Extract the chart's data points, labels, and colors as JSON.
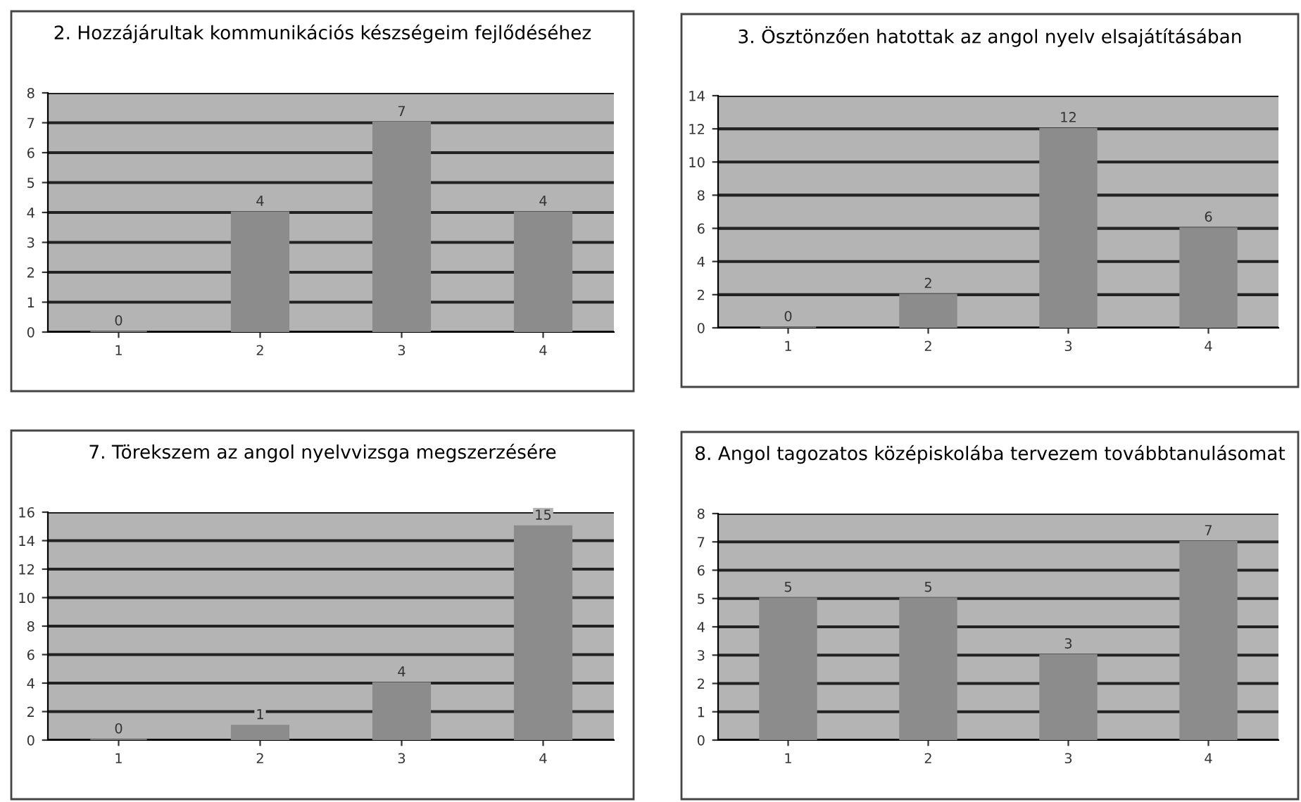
{
  "chart_data": [
    {
      "type": "bar",
      "title": "2. Hozzájárultak kommunikációs készségeim fejlődéséhez",
      "categories": [
        "1",
        "2",
        "3",
        "4"
      ],
      "values": [
        0,
        4,
        7,
        4
      ],
      "color": "#8c8c8c",
      "ylim": [
        0,
        8
      ],
      "yticks": [
        0,
        1,
        2,
        3,
        4,
        5,
        6,
        7,
        8
      ],
      "grid": "y",
      "data_labels": true
    },
    {
      "type": "bar",
      "title": "3. Ösztönzően hatottak az angol nyelv elsajátításában",
      "categories": [
        "1",
        "2",
        "3",
        "4"
      ],
      "values": [
        0,
        2,
        12,
        6
      ],
      "color": "#8c8c8c",
      "ylim": [
        0,
        14
      ],
      "yticks": [
        0,
        2,
        4,
        6,
        8,
        10,
        12,
        14
      ],
      "grid": "y",
      "data_labels": true
    },
    {
      "type": "bar",
      "title": "7. Törekszem az angol nyelvvizsga megszerzésére",
      "categories": [
        "1",
        "2",
        "3",
        "4"
      ],
      "values": [
        0,
        1,
        4,
        15
      ],
      "color": "#8c8c8c",
      "ylim": [
        0,
        16
      ],
      "yticks": [
        0,
        2,
        4,
        6,
        8,
        10,
        12,
        14,
        16
      ],
      "grid": "y",
      "data_labels": true
    },
    {
      "type": "bar",
      "title": "8. Angol tagozatos középiskolába tervezem továbbtanulásomat",
      "categories": [
        "1",
        "2",
        "3",
        "4"
      ],
      "values": [
        5,
        5,
        3,
        7
      ],
      "color": "#8c8c8c",
      "ylim": [
        0,
        8
      ],
      "yticks": [
        0,
        1,
        2,
        3,
        4,
        5,
        6,
        7,
        8
      ],
      "grid": "y",
      "data_labels": true
    }
  ]
}
